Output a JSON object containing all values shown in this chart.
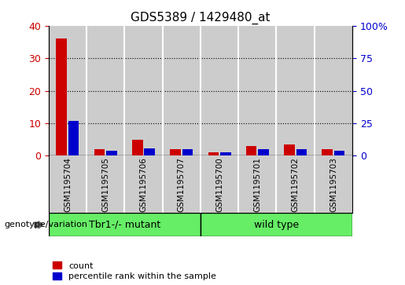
{
  "title": "GDS5389 / 1429480_at",
  "samples": [
    "GSM1195704",
    "GSM1195705",
    "GSM1195706",
    "GSM1195707",
    "GSM1195700",
    "GSM1195701",
    "GSM1195702",
    "GSM1195703"
  ],
  "count_values": [
    36,
    2,
    5,
    2,
    1,
    3,
    3.5,
    2
  ],
  "percentile_values": [
    10.8,
    1.6,
    2.4,
    2.0,
    1.2,
    2.0,
    2.0,
    1.6
  ],
  "groups": [
    {
      "label": "Tbr1-/- mutant",
      "start": 0,
      "end": 4,
      "color": "#66ee66"
    },
    {
      "label": "wild type",
      "start": 4,
      "end": 8,
      "color": "#66ee66"
    }
  ],
  "group_label": "genotype/variation",
  "left_ylim": [
    0,
    40
  ],
  "right_ylim": [
    0,
    100
  ],
  "left_yticks": [
    0,
    10,
    20,
    30,
    40
  ],
  "right_yticks": [
    0,
    25,
    50,
    75,
    100
  ],
  "right_yticklabels": [
    "0",
    "25",
    "50",
    "75",
    "100%"
  ],
  "count_color": "#cc0000",
  "percentile_color": "#0000cc",
  "bar_bg_color": "#cccccc",
  "grid_yticks": [
    10,
    20,
    30
  ],
  "legend_count": "count",
  "legend_percentile": "percentile rank within the sample"
}
